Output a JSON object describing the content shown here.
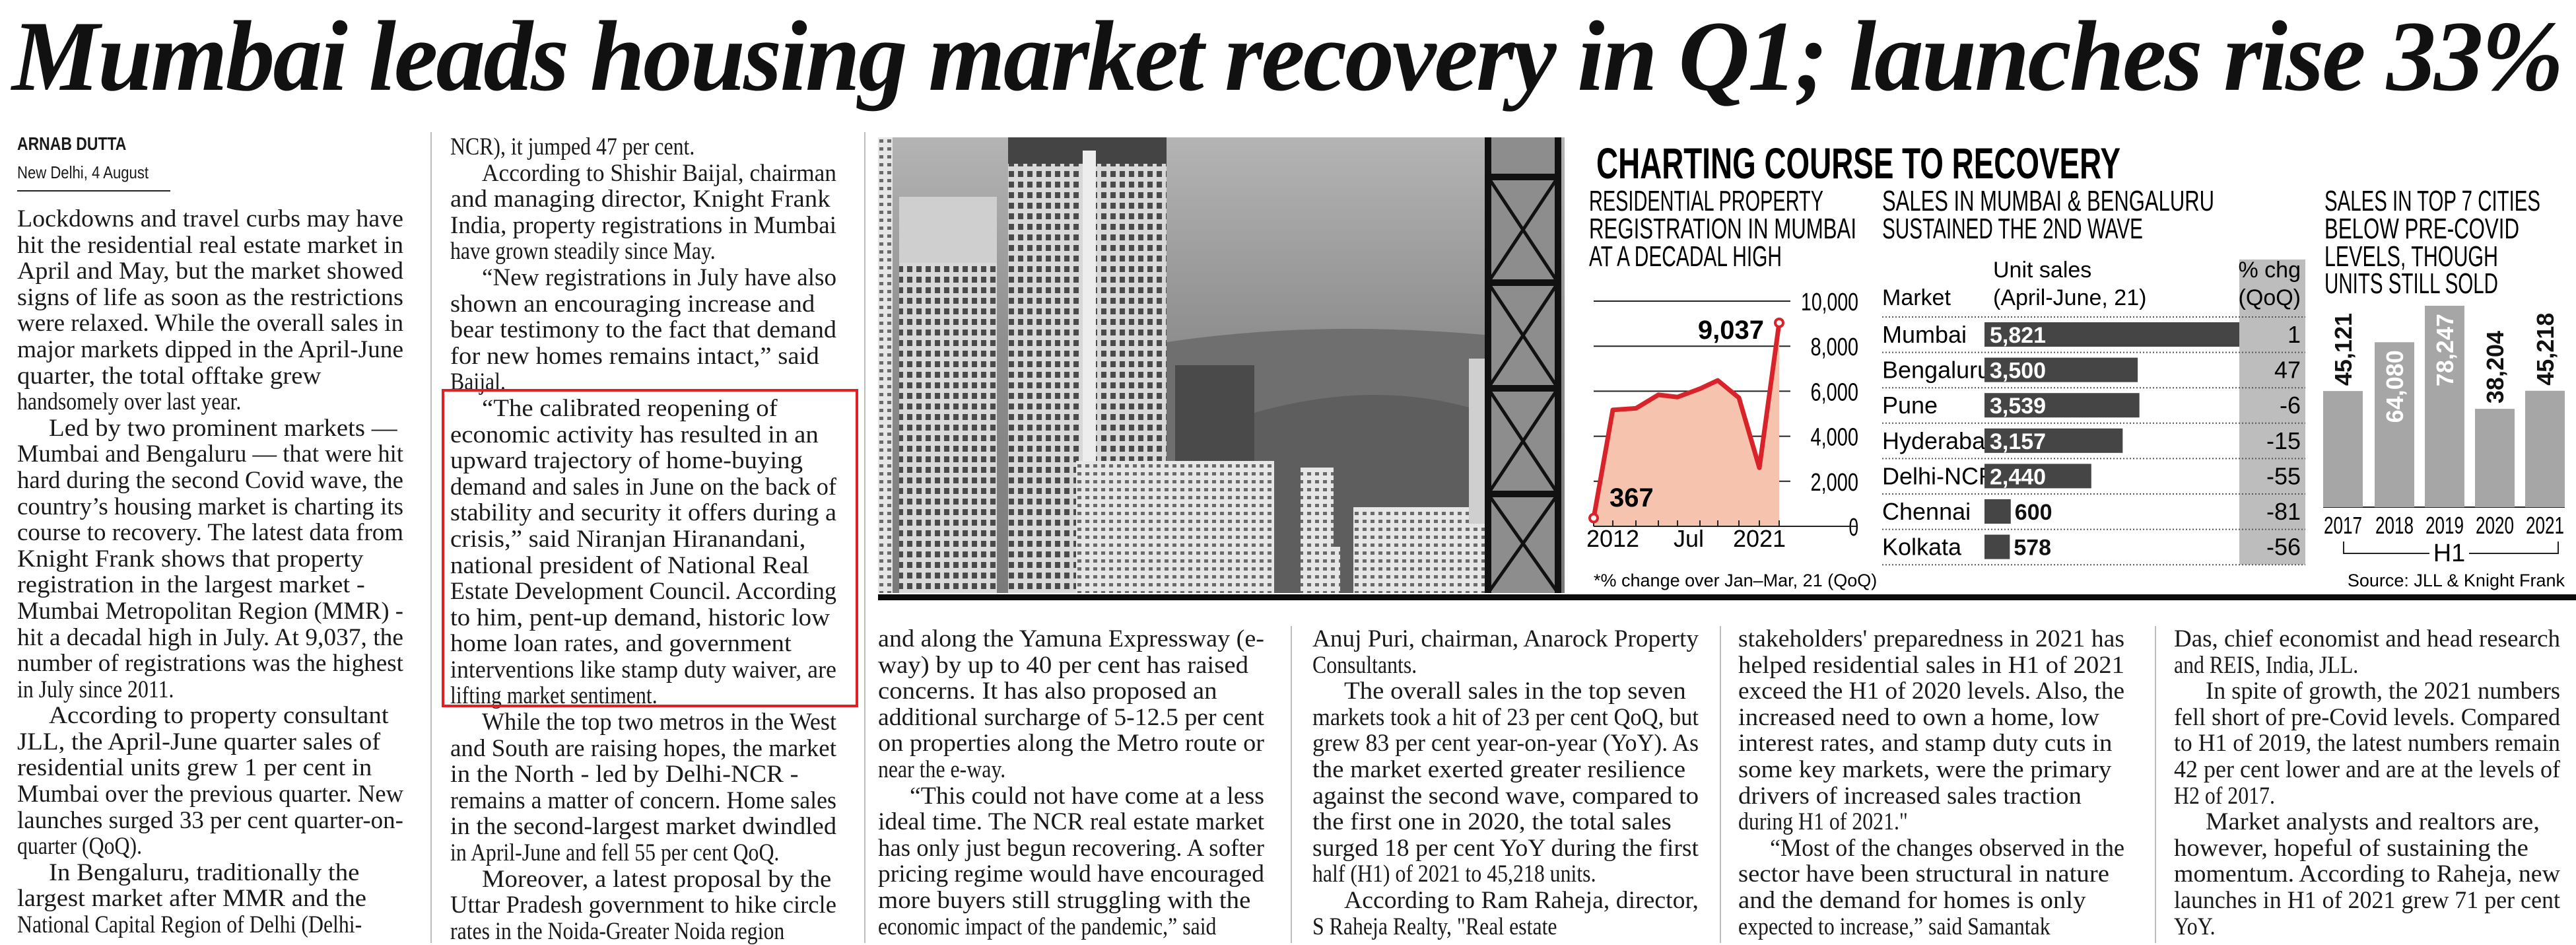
{
  "headline": "Mumbai leads housing market recovery in Q1; launches rise 33%",
  "byline": "ARNAB DUTTA",
  "dateline": "New Delhi, 4 August",
  "columns": [
    {
      "paragraphs": [
        {
          "indent": false,
          "lines": [
            "Lockdowns and travel curbs may have",
            "hit the residential real estate market in",
            "April and May, but the market showed",
            "signs of life as soon as the restrictions",
            "were relaxed. While the overall sales in",
            "major markets dipped in the April-June",
            "quarter, the total offtake grew",
            "handsomely over last year."
          ]
        },
        {
          "indent": true,
          "lines": [
            "Led by two prominent markets —",
            "Mumbai and Bengaluru — that were hit",
            "hard during the second Covid wave, the",
            "country’s housing market is charting its",
            "course to recovery. The latest data from",
            "Knight Frank shows that property",
            "registration in the largest market -",
            "Mumbai Metropolitan Region (MMR) -",
            "hit a decadal high in July. At 9,037, the",
            "number of registrations was the highest",
            "in July since 2011."
          ]
        },
        {
          "indent": true,
          "lines": [
            "According to property consultant",
            "JLL, the April-June quarter sales of",
            "residential units grew 1 per cent in",
            "Mumbai over the previous quarter. New",
            "launches surged 33 per cent quarter-on-",
            "quarter (QoQ)."
          ]
        },
        {
          "indent": true,
          "cont": true,
          "lines": [
            "In Bengaluru, traditionally the",
            "largest market after MMR and the",
            "National Capital Region of Delhi (Delhi-"
          ]
        }
      ]
    },
    {
      "paragraphs": [
        {
          "indent": false,
          "lines": [
            "NCR), it jumped 47 per cent."
          ]
        },
        {
          "indent": true,
          "lines": [
            "According to Shishir Baijal, chairman",
            "and managing director, Knight Frank",
            "India, property registrations in Mumbai",
            "have grown steadily since May."
          ]
        },
        {
          "indent": true,
          "lines": [
            "“New registrations in July have also",
            "shown an encouraging increase and",
            "bear testimony to the fact that demand",
            "for new homes remains intact,” said",
            "Baijal."
          ]
        },
        {
          "indent": true,
          "lines": [
            "“The calibrated reopening of",
            "economic activity has resulted in an",
            "upward trajectory of home-buying",
            "demand and sales in June on the back of",
            "stability and security it offers during a",
            "crisis,” said Niranjan Hiranandani,",
            "national president of National Real",
            "Estate Development Council. According",
            "to him, pent-up demand, historic low",
            "home loan rates, and government",
            "interventions like stamp duty waiver, are",
            "lifting market sentiment."
          ]
        },
        {
          "indent": true,
          "lines": [
            "While the top two metros in the West",
            "and South are raising hopes, the market",
            "in the North - led by Delhi-NCR -",
            "remains a matter of concern. Home sales",
            "in the second-largest market dwindled",
            "in April-June and fell 55 per cent QoQ."
          ]
        },
        {
          "indent": true,
          "cont": true,
          "lines": [
            "Moreover, a latest proposal by the",
            "Uttar Pradesh government to hike circle",
            "rates in the Noida-Greater Noida region"
          ]
        }
      ]
    },
    {
      "paragraphs": [
        {
          "indent": false,
          "lines": [
            "and along the Yamuna Expressway (e-",
            "way) by up to 40 per cent has raised",
            "concerns. It has also proposed an",
            "additional surcharge of 5-12.5 per cent",
            "on properties along the Metro route or",
            "near the e-way."
          ]
        },
        {
          "indent": true,
          "cont": true,
          "lines": [
            "“This could not have come at a less",
            "ideal time. The NCR real estate market",
            "has only just begun recovering. A softer",
            "pricing regime would have encouraged",
            "more buyers still struggling with the",
            "economic impact of the pandemic,” said"
          ]
        }
      ]
    },
    {
      "paragraphs": [
        {
          "indent": false,
          "lines": [
            "Anuj Puri, chairman, Anarock Property",
            "Consultants."
          ]
        },
        {
          "indent": true,
          "lines": [
            "The overall sales in the top seven",
            "markets took a hit of 23 per cent QoQ, but",
            "grew 83 per cent year-on-year (YoY). As",
            "the market exerted greater resilience",
            "against the second wave, compared to",
            "the first one in 2020, the total sales",
            "surged 18 per cent YoY during the first",
            "half (H1) of 2021 to 45,218 units."
          ]
        },
        {
          "indent": true,
          "cont": true,
          "lines": [
            "According to Ram Raheja, director,",
            "S Raheja Realty, \"Real estate"
          ]
        }
      ]
    },
    {
      "paragraphs": [
        {
          "indent": false,
          "lines": [
            "stakeholders' preparedness in 2021 has",
            "helped residential sales in H1 of 2021",
            "exceed the H1 of 2020 levels. Also, the",
            "increased need to own a home, low",
            "interest rates, and stamp duty cuts in",
            "some key markets, were the primary",
            "drivers of increased sales traction",
            "during H1 of 2021.\""
          ]
        },
        {
          "indent": true,
          "cont": true,
          "lines": [
            "“Most of the changes observed in the",
            "sector have been structural in nature",
            "and the demand for homes is only",
            "expected to increase,” said Samantak"
          ]
        }
      ]
    },
    {
      "paragraphs": [
        {
          "indent": false,
          "lines": [
            "Das, chief economist and head research",
            "and REIS, India, JLL."
          ]
        },
        {
          "indent": true,
          "lines": [
            "In spite of growth, the 2021 numbers",
            "fell short of pre-Covid levels. Compared",
            "to H1 of 2019, the latest numbers remain",
            "42 per cent lower and are at the levels of",
            "H2 of 2017."
          ]
        },
        {
          "indent": true,
          "lines": [
            "Market analysts and realtors are,",
            "however, hopeful of sustaining the",
            "momentum. According to Raheja, new",
            "launches in H1 of 2021 grew 71 per cent",
            "YoY."
          ]
        }
      ]
    }
  ],
  "graphic": {
    "title": "CHARTING COURSE TO RECOVERY",
    "footnote": "*% change over Jan–Mar, 21 (QoQ)",
    "source": "Source: JLL & Knight Frank"
  },
  "chart_data": [
    {
      "type": "area",
      "title_lines": [
        "RESIDENTIAL PROPERTY",
        "REGISTRATION IN MUMBAI",
        "AT A DECADAL HIGH"
      ],
      "values": [
        367,
        5170,
        5240,
        5840,
        5740,
        6110,
        6480,
        5710,
        2600,
        9037
      ],
      "x_tick_labels": [
        {
          "label": "2012",
          "index": 1
        },
        {
          "label": "Jul",
          "index": 4.5
        },
        {
          "label": "2021",
          "index": 8
        }
      ],
      "y_ticks": [
        {
          "value": 0,
          "label": "0"
        },
        {
          "value": 2000,
          "label": "2,000"
        },
        {
          "value": 4000,
          "label": "4,000"
        },
        {
          "value": 6000,
          "label": "6,000"
        },
        {
          "value": 8000,
          "label": "8,000"
        },
        {
          "value": 10000,
          "label": "10,000"
        }
      ],
      "ylim": [
        0,
        10000
      ],
      "y_axis_side": "right",
      "grid": true,
      "data_labels": [
        {
          "index": 0,
          "text": "367"
        },
        {
          "index": 9,
          "text": "9,037"
        }
      ],
      "line_color": "#d9232a",
      "fill_color": "#f6c4ae"
    },
    {
      "type": "bar",
      "orientation": "horizontal",
      "title_lines": [
        "SALES IN MUMBAI & BENGALURU",
        "SUSTAINED THE 2ND WAVE"
      ],
      "headers": {
        "market": "Market",
        "sales": [
          "Unit sales",
          "(April-June, 21)"
        ],
        "change": [
          "% chg",
          "(QoQ)"
        ]
      },
      "categories": [
        "Mumbai",
        "Bengaluru",
        "Pune",
        "Hyderabad",
        "Delhi-NCR",
        "Chennai",
        "Kolkata"
      ],
      "values": [
        5821,
        3500,
        3539,
        3157,
        2440,
        600,
        578
      ],
      "value_labels": [
        "5,821",
        "3,500",
        "3,539",
        "3,157",
        "2,440",
        "600",
        "578"
      ],
      "pct_change": [
        "1",
        "47",
        "-6",
        "-15",
        "-55",
        "-81",
        "-56"
      ],
      "bar_color": "#454545",
      "change_column_color": "#bdbdbd"
    },
    {
      "type": "bar",
      "orientation": "vertical",
      "title_lines": [
        "SALES IN TOP 7 CITIES",
        "BELOW PRE-COVID",
        "LEVELS, THOUGH",
        "UNITS STILL SOLD"
      ],
      "categories": [
        "2017",
        "2018",
        "2019",
        "2020",
        "2021"
      ],
      "group_label": "H1",
      "values": [
        45121,
        64080,
        78247,
        38204,
        45218
      ],
      "value_labels": [
        "45,121",
        "64,080",
        "78,247",
        "38,204",
        "45,218"
      ],
      "bar_color": "#a6a6a6"
    }
  ],
  "colors": {
    "highlight_box": "#e31e24",
    "text": "#1a1a1a"
  }
}
